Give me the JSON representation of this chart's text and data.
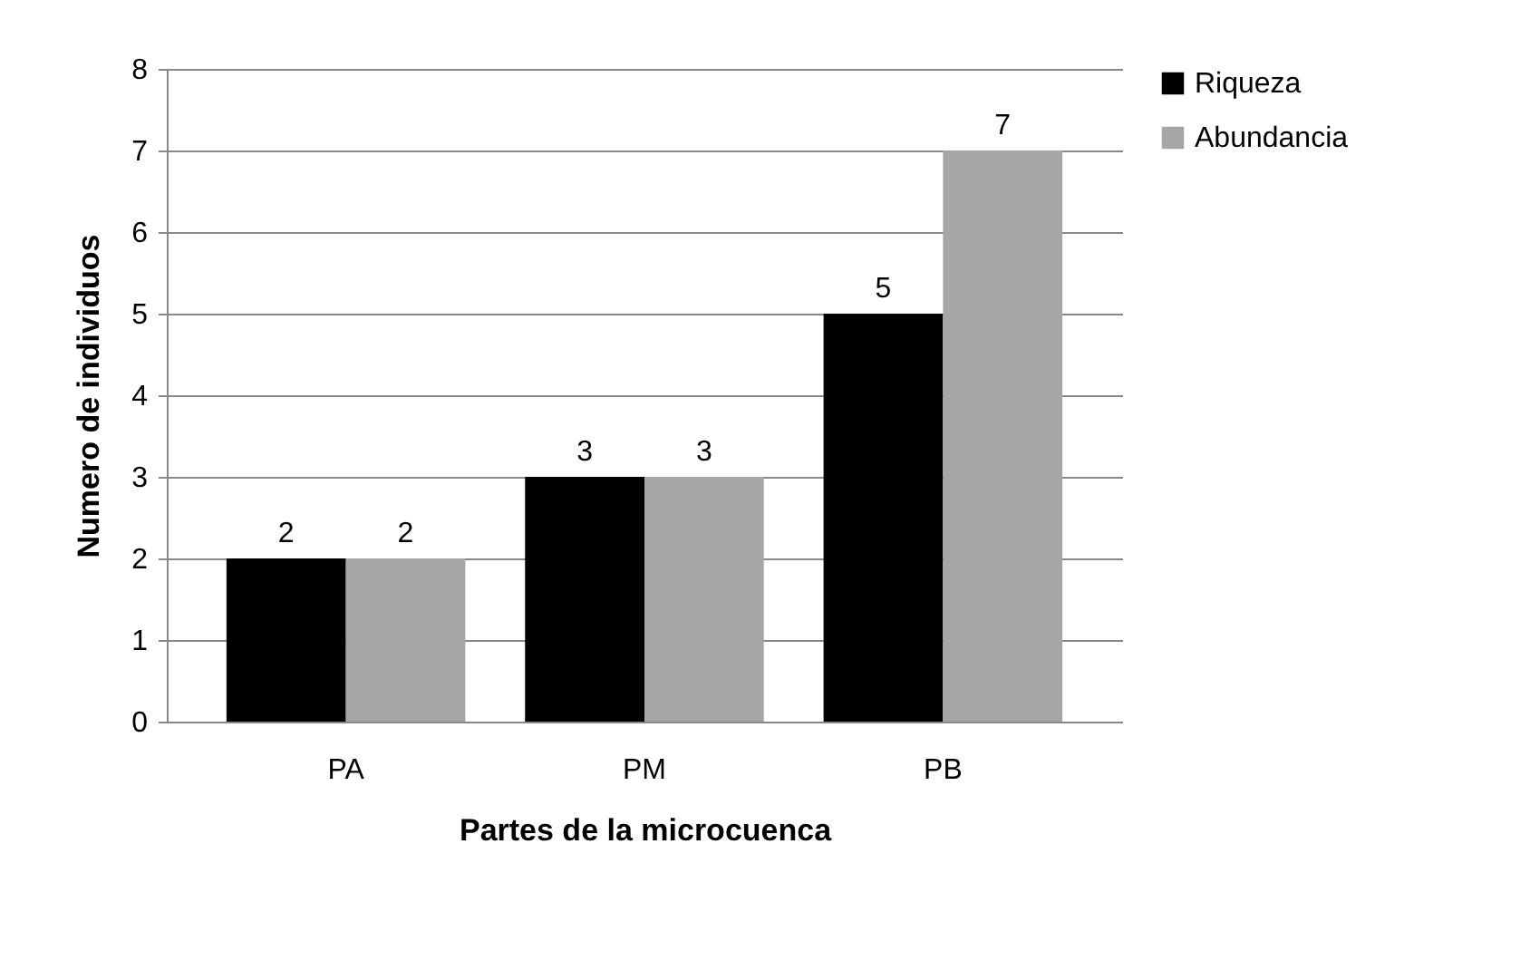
{
  "chart_data": {
    "type": "bar",
    "xlabel": "Partes de la microcuenca",
    "ylabel": "Numero de individuos",
    "categories": [
      "PA",
      "PM",
      "PB"
    ],
    "series": [
      {
        "name": "Riqueza",
        "color": "#000000",
        "values": [
          2,
          3,
          5
        ]
      },
      {
        "name": "Abundancia",
        "color": "#a6a6a6",
        "values": [
          2,
          3,
          7
        ]
      }
    ],
    "ylim": [
      0,
      8
    ],
    "yticks": [
      0,
      1,
      2,
      3,
      4,
      5,
      6,
      7,
      8
    ],
    "grid": "y",
    "legend": "right",
    "data_labels": true
  }
}
